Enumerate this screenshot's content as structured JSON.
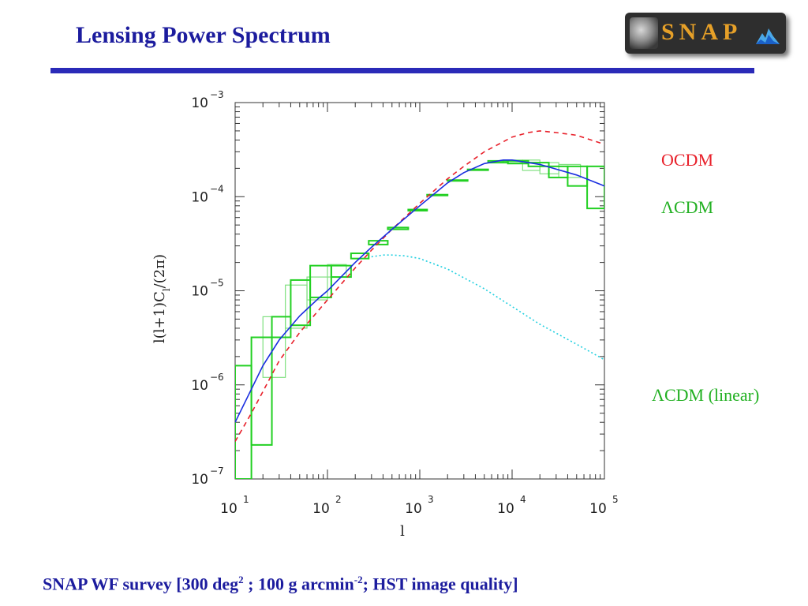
{
  "slide": {
    "title": "Lensing Power Spectrum",
    "logo_text": "SNAP",
    "footer": {
      "part1": "SNAP WF survey [300 deg",
      "sup1": "2",
      "part2": " ; 100 g arcmin",
      "sup2": "-2",
      "part3": "; HST image quality]"
    }
  },
  "colors": {
    "title": "#1c1c9e",
    "rule": "#2a2ab8",
    "ocdm": "#e8202a",
    "lcdm": "#1a2ee0",
    "lcdm_linear": "#22d0e0",
    "survey_wide": "#22d022",
    "survey_light": "#80e080"
  },
  "chart_data": {
    "type": "line",
    "xlabel": "l",
    "ylabel": "l(l+1)C",
    "ylabel_sub": "l",
    "ylabel_tail": "/(2π)",
    "x_scale": "log",
    "y_scale": "log",
    "xlim": [
      10,
      100000
    ],
    "ylim": [
      1e-07,
      0.001
    ],
    "x_ticks": [
      {
        "base": "10",
        "exp": "1"
      },
      {
        "base": "10",
        "exp": "2"
      },
      {
        "base": "10",
        "exp": "3"
      },
      {
        "base": "10",
        "exp": "4"
      },
      {
        "base": "10",
        "exp": "5"
      }
    ],
    "y_ticks": [
      {
        "base": "10",
        "exp": "−3"
      },
      {
        "base": "10",
        "exp": "−4"
      },
      {
        "base": "10",
        "exp": "−5"
      },
      {
        "base": "10",
        "exp": "−6"
      },
      {
        "base": "10",
        "exp": "−7"
      }
    ],
    "legend": [
      {
        "label": "OCDM",
        "color": "#e8202a"
      },
      {
        "label": "ΛCDM",
        "color": "#22b022"
      },
      {
        "label": "ΛCDM (linear)",
        "color": "#22b022"
      }
    ],
    "series": [
      {
        "name": "OCDM",
        "style": "dashed",
        "color": "#e8202a",
        "x": [
          10,
          15,
          20,
          30,
          50,
          80,
          100,
          200,
          300,
          500,
          1000,
          2000,
          3000,
          5000,
          10000,
          15000,
          20000,
          30000,
          50000,
          100000
        ],
        "y": [
          2.5e-07,
          5e-07,
          8.5e-07,
          1.8e-06,
          3.6e-06,
          6.2e-06,
          8e-06,
          1.75e-05,
          2.7e-05,
          4.5e-05,
          8.5e-05,
          0.000155,
          0.00021,
          0.0003,
          0.00043,
          0.00048,
          0.0005,
          0.00048,
          0.00045,
          0.00036
        ]
      },
      {
        "name": "ΛCDM",
        "style": "solid",
        "color": "#1a2ee0",
        "x": [
          10,
          15,
          20,
          30,
          50,
          80,
          100,
          200,
          300,
          500,
          1000,
          2000,
          3000,
          5000,
          8000,
          10000,
          20000,
          50000,
          100000
        ],
        "y": [
          4e-07,
          9e-07,
          1.6e-06,
          3e-06,
          5.4e-06,
          8.3e-06,
          1e-05,
          2e-05,
          2.9e-05,
          4.5e-05,
          8e-05,
          0.00014,
          0.00018,
          0.000225,
          0.000245,
          0.000245,
          0.00022,
          0.00017,
          0.00013
        ]
      },
      {
        "name": "ΛCDM (linear)",
        "style": "dotted",
        "color": "#22d0e0",
        "x": [
          300,
          400,
          500,
          700,
          1000,
          2000,
          5000,
          10000,
          20000,
          50000,
          100000
        ],
        "y": [
          2.3e-05,
          2.4e-05,
          2.4e-05,
          2.35e-05,
          2.2e-05,
          1.7e-05,
          1.05e-05,
          6.8e-06,
          4.4e-06,
          2.7e-06,
          1.85e-06
        ]
      }
    ],
    "survey_bins_wide": [
      {
        "x0": 10,
        "x1": 15,
        "y": 1.6e-06,
        "lo": 1e-07,
        "hi": 1.6e-06
      },
      {
        "x0": 15,
        "x1": 25,
        "y": 2.3e-07,
        "lo": 2.3e-07,
        "hi": 3.2e-06
      },
      {
        "x0": 25,
        "x1": 40,
        "y": 3.2e-06,
        "lo": 3.2e-06,
        "hi": 5.3e-06
      },
      {
        "x0": 40,
        "x1": 65,
        "y": 4.3e-06,
        "lo": 4.3e-06,
        "hi": 1.3e-05
      },
      {
        "x0": 65,
        "x1": 110,
        "y": 8.5e-06,
        "lo": 8.5e-06,
        "hi": 1.85e-05
      },
      {
        "x0": 110,
        "x1": 180,
        "y": 1.4e-05,
        "lo": 1.4e-05,
        "hi": 1.85e-05
      },
      {
        "x0": 180,
        "x1": 280,
        "y": 2.5e-05,
        "lo": 2.2e-05,
        "hi": 2.5e-05
      },
      {
        "x0": 280,
        "x1": 450,
        "y": 3.4e-05,
        "lo": 3.1e-05,
        "hi": 3.4e-05
      },
      {
        "x0": 450,
        "x1": 750,
        "y": 4.7e-05,
        "lo": 4.5e-05,
        "hi": 4.7e-05
      },
      {
        "x0": 750,
        "x1": 1200,
        "y": 7.3e-05,
        "lo": 7.1e-05,
        "hi": 7.3e-05
      },
      {
        "x0": 1200,
        "x1": 2000,
        "y": 0.000105,
        "lo": 0.000103,
        "hi": 0.000105
      },
      {
        "x0": 2000,
        "x1": 3300,
        "y": 0.00015,
        "lo": 0.000148,
        "hi": 0.00015
      },
      {
        "x0": 3300,
        "x1": 5500,
        "y": 0.000195,
        "lo": 0.000193,
        "hi": 0.000195
      },
      {
        "x0": 5500,
        "x1": 9000,
        "y": 0.000235,
        "lo": 0.00023,
        "hi": 0.00024
      },
      {
        "x0": 9000,
        "x1": 15000,
        "y": 0.00024,
        "lo": 0.000225,
        "hi": 0.00024
      },
      {
        "x0": 15000,
        "x1": 25000,
        "y": 0.00023,
        "lo": 0.00021,
        "hi": 0.00023
      },
      {
        "x0": 25000,
        "x1": 40000,
        "y": 0.00021,
        "lo": 0.00016,
        "hi": 0.00021
      },
      {
        "x0": 40000,
        "x1": 65000,
        "y": 0.00013,
        "lo": 0.00013,
        "hi": 0.00021
      },
      {
        "x0": 65000,
        "x1": 100000,
        "y": 7.5e-05,
        "lo": 7.5e-05,
        "hi": 0.00021
      }
    ],
    "survey_bins_light": [
      {
        "x0": 10,
        "x1": 15,
        "lo": 1e-07,
        "hi": 1.6e-06
      },
      {
        "x0": 20,
        "x1": 35,
        "lo": 1.2e-06,
        "hi": 5.3e-06
      },
      {
        "x0": 35,
        "x1": 60,
        "lo": 4e-06,
        "hi": 1.15e-05
      },
      {
        "x0": 60,
        "x1": 100,
        "lo": 8e-06,
        "hi": 1.4e-05
      },
      {
        "x0": 100,
        "x1": 160,
        "lo": 1.4e-05,
        "hi": 1.9e-05
      },
      {
        "x0": 8000,
        "x1": 13000,
        "lo": 0.00023,
        "hi": 0.000245
      },
      {
        "x0": 13000,
        "x1": 20000,
        "lo": 0.00019,
        "hi": 0.000245
      },
      {
        "x0": 20000,
        "x1": 32000,
        "lo": 0.000175,
        "hi": 0.00023
      },
      {
        "x0": 32000,
        "x1": 55000,
        "lo": 0.00016,
        "hi": 0.00022
      }
    ]
  }
}
